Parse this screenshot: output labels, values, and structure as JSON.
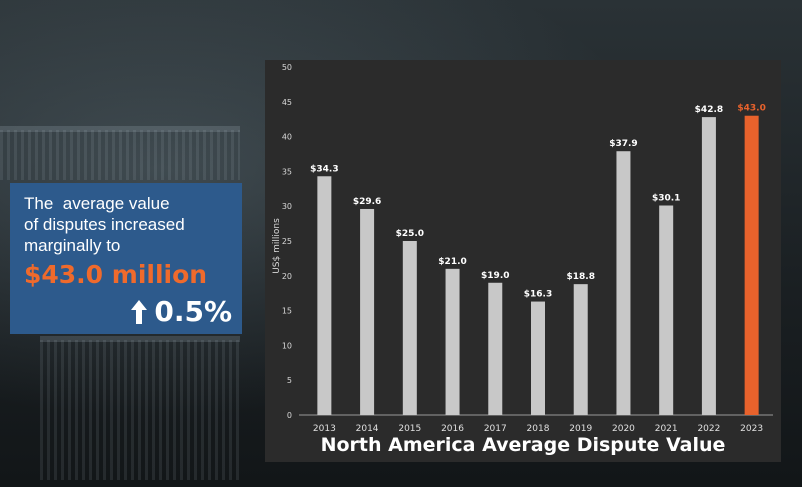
{
  "callout": {
    "line1": "The  average value",
    "line2": "of disputes increased",
    "line3": "marginally to",
    "amount": "$43.0 million",
    "change": "0.5%",
    "arrow_icon": "arrow-up-icon",
    "background_color": "#2d5a8c",
    "accent_color": "#ef6a2c"
  },
  "chart_data": {
    "type": "bar",
    "title": "North America Average Dispute Value",
    "ylabel": "US$ millions",
    "xlabel": "",
    "ylim": [
      0,
      50
    ],
    "yticks": [
      0,
      5,
      10,
      15,
      20,
      25,
      30,
      35,
      40,
      45,
      50
    ],
    "categories": [
      "2013",
      "2014",
      "2015",
      "2016",
      "2017",
      "2018",
      "2019",
      "2020",
      "2021",
      "2022",
      "2023"
    ],
    "values": [
      34.3,
      29.6,
      25.0,
      21.0,
      19.0,
      16.3,
      18.8,
      37.9,
      30.1,
      42.8,
      43.0
    ],
    "data_labels": [
      "$34.3",
      "$29.6",
      "$25.0",
      "$21.0",
      "$19.0",
      "$16.3",
      "$18.8",
      "$37.9",
      "$30.1",
      "$42.8",
      "$43.0"
    ],
    "highlight_category": "2023",
    "bar_color": "#c8c8c8",
    "highlight_color": "#e8622c",
    "grid": false,
    "legend": "none"
  }
}
